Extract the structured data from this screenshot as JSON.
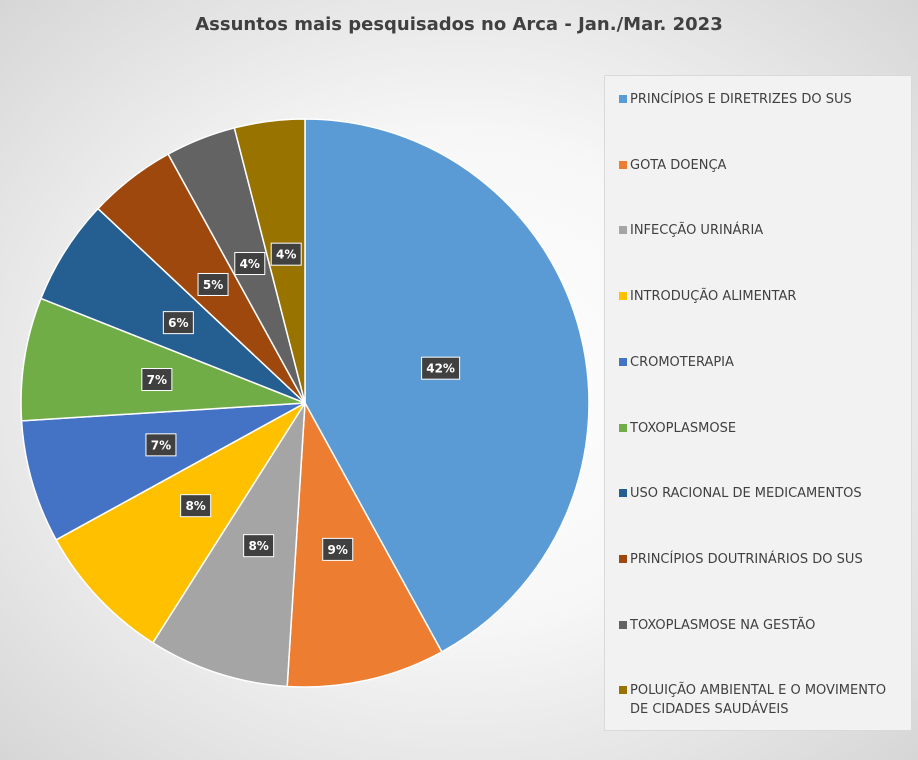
{
  "chart_data": {
    "type": "pie",
    "title": "Assuntos mais pesquisados no Arca - Jan./Mar. 2023",
    "categories": [
      "PRINCÍPIOS E DIRETRIZES DO SUS",
      "GOTA DOENÇA",
      "INFECÇÃO URINÁRIA",
      "INTRODUÇÃO ALIMENTAR",
      "CROMOTERAPIA",
      "TOXOPLASMOSE",
      "USO RACIONAL DE MEDICAMENTOS",
      "PRINCÍPIOS DOUTRINÁRIOS DO SUS",
      "TOXOPLASMOSE NA GESTÃO",
      "POLUIÇÃO AMBIENTAL E O MOVIMENTO DE CIDADES SAUDÁVEIS"
    ],
    "values": [
      42,
      9,
      8,
      8,
      7,
      7,
      6,
      5,
      4,
      4
    ],
    "data_labels": [
      "42%",
      "9%",
      "8%",
      "8%",
      "7%",
      "7%",
      "6%",
      "5%",
      "4%",
      "4%"
    ],
    "colors": [
      "#5b9bd5",
      "#ed7d31",
      "#a5a5a5",
      "#ffc000",
      "#4472c4",
      "#70ad47",
      "#255e91",
      "#9e480e",
      "#636363",
      "#997300"
    ],
    "legend_position": "right",
    "grid": false
  }
}
